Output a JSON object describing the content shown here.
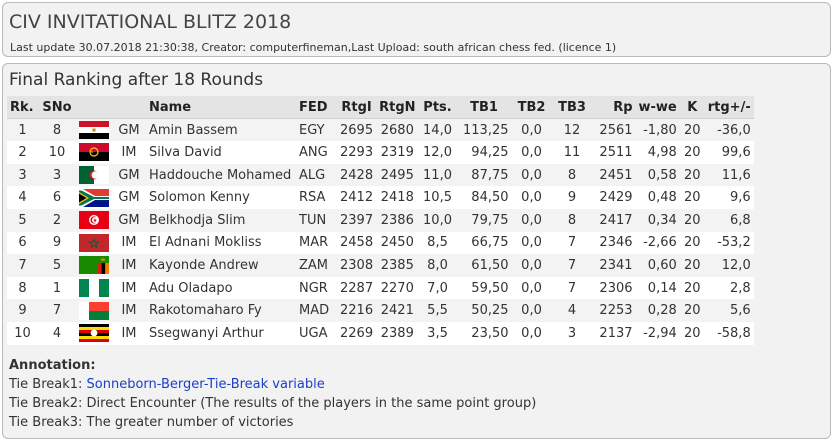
{
  "header": {
    "title": "CIV INVITATIONAL BLITZ 2018",
    "update": "Last update 30.07.2018 21:30:38, Creator: computerfineman,Last Upload: south african chess fed. (licence 1)"
  },
  "section": {
    "title": "Final Ranking after 18 Rounds"
  },
  "table": {
    "headers": {
      "rk": "Rk.",
      "sno": "SNo",
      "flag": "",
      "title": "",
      "name": "Name",
      "fed": "FED",
      "rtgi": "RtgI",
      "rtgn": "RtgN",
      "pts": "Pts.",
      "tb1": "TB1",
      "tb2": "TB2",
      "tb3": "TB3",
      "rp": "Rp",
      "wwe": "w-we",
      "k": "K",
      "rtgdiff": "rtg+/-"
    },
    "rows": [
      {
        "rk": "1",
        "sno": "8",
        "flag": "egypt-flag",
        "title": "GM",
        "name": "Amin Bassem",
        "fed": "EGY",
        "rtgi": "2695",
        "rtgn": "2680",
        "pts": "14,0",
        "tb1": "113,25",
        "tb2": "0,0",
        "tb3": "12",
        "rp": "2561",
        "wwe": "-1,80",
        "k": "20",
        "rtgdiff": "-36,0"
      },
      {
        "rk": "2",
        "sno": "10",
        "flag": "angola-flag",
        "title": "IM",
        "name": "Silva David",
        "fed": "ANG",
        "rtgi": "2293",
        "rtgn": "2319",
        "pts": "12,0",
        "tb1": "94,25",
        "tb2": "0,0",
        "tb3": "11",
        "rp": "2511",
        "wwe": "4,98",
        "k": "20",
        "rtgdiff": "99,6"
      },
      {
        "rk": "3",
        "sno": "3",
        "flag": "algeria-flag",
        "title": "GM",
        "name": "Haddouche Mohamed",
        "fed": "ALG",
        "rtgi": "2428",
        "rtgn": "2495",
        "pts": "11,0",
        "tb1": "87,75",
        "tb2": "0,0",
        "tb3": "8",
        "rp": "2451",
        "wwe": "0,58",
        "k": "20",
        "rtgdiff": "11,6"
      },
      {
        "rk": "4",
        "sno": "6",
        "flag": "south-africa-flag",
        "title": "GM",
        "name": "Solomon Kenny",
        "fed": "RSA",
        "rtgi": "2412",
        "rtgn": "2418",
        "pts": "10,5",
        "tb1": "84,50",
        "tb2": "0,0",
        "tb3": "9",
        "rp": "2429",
        "wwe": "0,48",
        "k": "20",
        "rtgdiff": "9,6"
      },
      {
        "rk": "5",
        "sno": "2",
        "flag": "tunisia-flag",
        "title": "GM",
        "name": "Belkhodja Slim",
        "fed": "TUN",
        "rtgi": "2397",
        "rtgn": "2386",
        "pts": "10,0",
        "tb1": "79,75",
        "tb2": "0,0",
        "tb3": "8",
        "rp": "2417",
        "wwe": "0,34",
        "k": "20",
        "rtgdiff": "6,8"
      },
      {
        "rk": "6",
        "sno": "9",
        "flag": "morocco-flag",
        "title": "IM",
        "name": "El Adnani Mokliss",
        "fed": "MAR",
        "rtgi": "2458",
        "rtgn": "2450",
        "pts": "8,5",
        "tb1": "66,75",
        "tb2": "0,0",
        "tb3": "7",
        "rp": "2346",
        "wwe": "-2,66",
        "k": "20",
        "rtgdiff": "-53,2"
      },
      {
        "rk": "7",
        "sno": "5",
        "flag": "zambia-flag",
        "title": "IM",
        "name": "Kayonde Andrew",
        "fed": "ZAM",
        "rtgi": "2308",
        "rtgn": "2385",
        "pts": "8,0",
        "tb1": "61,50",
        "tb2": "0,0",
        "tb3": "7",
        "rp": "2341",
        "wwe": "0,60",
        "k": "20",
        "rtgdiff": "12,0"
      },
      {
        "rk": "8",
        "sno": "1",
        "flag": "nigeria-flag",
        "title": "IM",
        "name": "Adu Oladapo",
        "fed": "NGR",
        "rtgi": "2287",
        "rtgn": "2270",
        "pts": "7,0",
        "tb1": "59,50",
        "tb2": "0,0",
        "tb3": "7",
        "rp": "2306",
        "wwe": "0,14",
        "k": "20",
        "rtgdiff": "2,8"
      },
      {
        "rk": "9",
        "sno": "7",
        "flag": "madagascar-flag",
        "title": "IM",
        "name": "Rakotomaharo Fy",
        "fed": "MAD",
        "rtgi": "2216",
        "rtgn": "2421",
        "pts": "5,5",
        "tb1": "50,25",
        "tb2": "0,0",
        "tb3": "4",
        "rp": "2253",
        "wwe": "0,28",
        "k": "20",
        "rtgdiff": "5,6"
      },
      {
        "rk": "10",
        "sno": "4",
        "flag": "uganda-flag",
        "title": "IM",
        "name": "Ssegwanyi Arthur",
        "fed": "UGA",
        "rtgi": "2269",
        "rtgn": "2389",
        "pts": "3,5",
        "tb1": "23,50",
        "tb2": "0,0",
        "tb3": "3",
        "rp": "2137",
        "wwe": "-2,94",
        "k": "20",
        "rtgdiff": "-58,8"
      }
    ]
  },
  "annotation": {
    "title": "Annotation:",
    "tb1_prefix": "Tie Break1: ",
    "tb1_link": "Sonneborn-Berger-Tie-Break variable",
    "tb2": "Tie Break2: Direct Encounter (The results of the players in the same point group)",
    "tb3": "Tie Break3: The greater number of victories"
  },
  "colors": {
    "panel_bg": "#f2f2f2",
    "header_row_bg": "#e4e4e4",
    "link": "#1a3fc7"
  }
}
